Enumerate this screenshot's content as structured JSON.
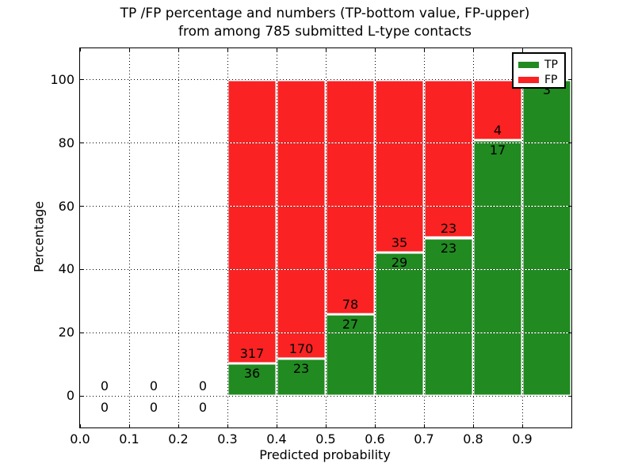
{
  "chart_data": {
    "type": "bar",
    "stacked": true,
    "title_lines": [
      "TP /FP percentage and numbers (TP-bottom value, FP-upper)",
      "from among 785 submitted L-type contacts"
    ],
    "xlabel": "Predicted probability",
    "ylabel": "Percentage",
    "xlim": [
      0.0,
      1.0
    ],
    "ylim": [
      -10,
      110
    ],
    "grid": "dotted",
    "legend_position": "upper-right",
    "colors": {
      "tp": "#218A21",
      "fp": "#FA2222",
      "bar_edge": "#ffffff"
    },
    "legend": [
      {
        "label": "TP",
        "color": "#218A21"
      },
      {
        "label": "FP",
        "color": "#FA2222"
      }
    ],
    "x_ticks": [
      {
        "value": 0.0,
        "label": "0.0"
      },
      {
        "value": 0.1,
        "label": "0.1"
      },
      {
        "value": 0.2,
        "label": "0.2"
      },
      {
        "value": 0.3,
        "label": "0.3"
      },
      {
        "value": 0.4,
        "label": "0.4"
      },
      {
        "value": 0.5,
        "label": "0.5"
      },
      {
        "value": 0.6,
        "label": "0.6"
      },
      {
        "value": 0.7,
        "label": "0.7"
      },
      {
        "value": 0.8,
        "label": "0.8"
      },
      {
        "value": 0.9,
        "label": "0.9"
      }
    ],
    "y_ticks": [
      {
        "value": 0,
        "label": "0"
      },
      {
        "value": 20,
        "label": "20"
      },
      {
        "value": 40,
        "label": "40"
      },
      {
        "value": 60,
        "label": "60"
      },
      {
        "value": 80,
        "label": "80"
      },
      {
        "value": 100,
        "label": "100"
      }
    ],
    "bins": [
      {
        "x0": 0.0,
        "x1": 0.1,
        "tp": 0,
        "fp": 0
      },
      {
        "x0": 0.1,
        "x1": 0.2,
        "tp": 0,
        "fp": 0
      },
      {
        "x0": 0.2,
        "x1": 0.3,
        "tp": 0,
        "fp": 0
      },
      {
        "x0": 0.3,
        "x1": 0.4,
        "tp": 36,
        "fp": 317
      },
      {
        "x0": 0.4,
        "x1": 0.5,
        "tp": 23,
        "fp": 170
      },
      {
        "x0": 0.5,
        "x1": 0.6,
        "tp": 27,
        "fp": 78
      },
      {
        "x0": 0.6,
        "x1": 0.7,
        "tp": 29,
        "fp": 35
      },
      {
        "x0": 0.7,
        "x1": 0.8,
        "tp": 23,
        "fp": 23
      },
      {
        "x0": 0.8,
        "x1": 0.9,
        "tp": 17,
        "fp": 4
      },
      {
        "x0": 0.9,
        "x1": 1.0,
        "tp": 3,
        "fp": 0
      }
    ]
  }
}
